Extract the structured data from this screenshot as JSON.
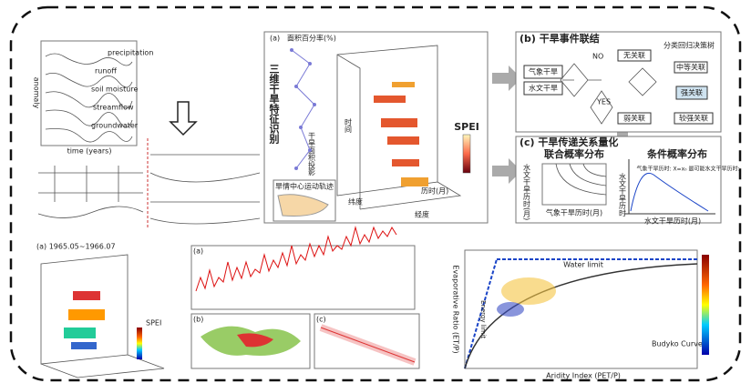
{
  "panels": {
    "propagation": {
      "series_labels": [
        "precipitation",
        "runoff",
        "soil moisture",
        "streamflow",
        "groundwater"
      ],
      "x_label": "time (years)",
      "y_label": "anomaly"
    },
    "identification": {
      "tag": "(a)",
      "title": "三维干旱特征识别",
      "area_label": "面积百分率(%)",
      "projection_label": "干旱面积投影",
      "time_label": "时间",
      "colorbar_label": "SPEI",
      "trajectory_label": "旱情中心运动轨迹",
      "lat_label": "纬度",
      "lon_label": "经度",
      "duration_label": "历时(月)"
    },
    "linkage": {
      "title": "(b) 干旱事件联结",
      "subtitle": "分类回归决策树",
      "inputs": [
        "气象干旱",
        "水文干旱"
      ],
      "outcomes": [
        "无关联",
        "中等关联",
        "强关联",
        "弱关联",
        "较强关联"
      ],
      "no": "NO",
      "yes": "YES"
    },
    "transfer": {
      "title": "(c) 干旱传递关系量化",
      "joint_title": "联合概率分布",
      "conditional_title": "条件概率分布",
      "joint_x": "气象干旱历时(月)",
      "joint_y": "水文干旱历时(月)",
      "cond_x": "水文干旱历时(月)",
      "cond_y": "水文干旱历时",
      "cond_note": "气象干旱历时: X=x₀ 最可能水文干旱历时:"
    },
    "bottom": {
      "cube_title": "(a) 1965.05~1966.07",
      "cube_colorbar": "SPEI",
      "series_tag": "(a)",
      "map_tag": "(b)",
      "scatter_tag": "(c)",
      "budyko_water": "Water limit",
      "budyko_energy": "Energy limit",
      "budyko_curve": "Budyko Curve",
      "budyko_y": "Evaporative Ratio (ET/P)",
      "budyko_x": "Aridity Index (PET/P)"
    }
  }
}
